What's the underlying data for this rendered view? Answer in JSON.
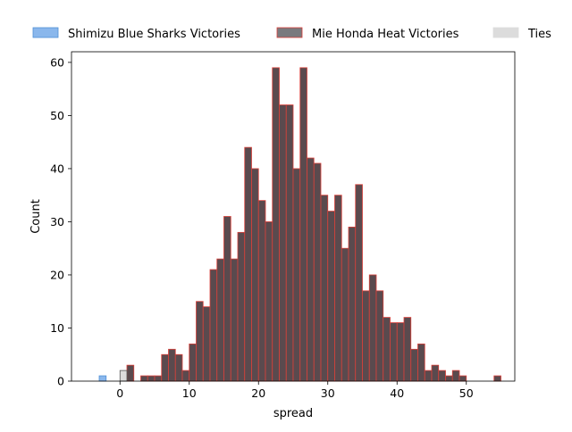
{
  "chart_data": {
    "type": "bar",
    "xlabel": "spread",
    "ylabel": "Count",
    "xlim": [
      -7,
      57
    ],
    "ylim": [
      0,
      62
    ],
    "xticks": [
      0,
      10,
      20,
      30,
      40,
      50
    ],
    "yticks": [
      0,
      10,
      20,
      30,
      40,
      50,
      60
    ],
    "bin_width": 1,
    "legend_position": "top, outside plot area",
    "series": [
      {
        "name": "Shimizu Blue Sharks Victories",
        "fill": "#8ab7ec",
        "edge": "#4f8fd6",
        "bins": [
          {
            "x": -3,
            "count": 1
          }
        ]
      },
      {
        "name": "Mie Honda Heat Victories",
        "fill": "#5a4a4e",
        "edge": "#d9403a",
        "legend_fill": "#7a7a7e",
        "bins": [
          {
            "x": 1,
            "count": 3
          },
          {
            "x": 3,
            "count": 1
          },
          {
            "x": 4,
            "count": 1
          },
          {
            "x": 5,
            "count": 1
          },
          {
            "x": 6,
            "count": 5
          },
          {
            "x": 7,
            "count": 6
          },
          {
            "x": 8,
            "count": 5
          },
          {
            "x": 9,
            "count": 2
          },
          {
            "x": 10,
            "count": 7
          },
          {
            "x": 11,
            "count": 15
          },
          {
            "x": 12,
            "count": 14
          },
          {
            "x": 13,
            "count": 21
          },
          {
            "x": 14,
            "count": 23
          },
          {
            "x": 15,
            "count": 31
          },
          {
            "x": 16,
            "count": 23
          },
          {
            "x": 17,
            "count": 28
          },
          {
            "x": 18,
            "count": 44
          },
          {
            "x": 19,
            "count": 40
          },
          {
            "x": 20,
            "count": 34
          },
          {
            "x": 21,
            "count": 30
          },
          {
            "x": 22,
            "count": 59
          },
          {
            "x": 23,
            "count": 52
          },
          {
            "x": 24,
            "count": 52
          },
          {
            "x": 25,
            "count": 40
          },
          {
            "x": 26,
            "count": 59
          },
          {
            "x": 27,
            "count": 42
          },
          {
            "x": 28,
            "count": 41
          },
          {
            "x": 29,
            "count": 35
          },
          {
            "x": 30,
            "count": 32
          },
          {
            "x": 31,
            "count": 35
          },
          {
            "x": 32,
            "count": 25
          },
          {
            "x": 33,
            "count": 29
          },
          {
            "x": 34,
            "count": 37
          },
          {
            "x": 35,
            "count": 17
          },
          {
            "x": 36,
            "count": 20
          },
          {
            "x": 37,
            "count": 17
          },
          {
            "x": 38,
            "count": 12
          },
          {
            "x": 39,
            "count": 11
          },
          {
            "x": 40,
            "count": 11
          },
          {
            "x": 41,
            "count": 12
          },
          {
            "x": 42,
            "count": 6
          },
          {
            "x": 43,
            "count": 7
          },
          {
            "x": 44,
            "count": 2
          },
          {
            "x": 45,
            "count": 3
          },
          {
            "x": 46,
            "count": 2
          },
          {
            "x": 47,
            "count": 1
          },
          {
            "x": 48,
            "count": 2
          },
          {
            "x": 49,
            "count": 1
          },
          {
            "x": 54,
            "count": 1
          }
        ]
      },
      {
        "name": "Ties",
        "fill": "#dcdcdc",
        "edge": "#555555",
        "legend_edge": "#dcdcdc",
        "bins": [
          {
            "x": 0,
            "count": 2
          }
        ]
      }
    ]
  }
}
